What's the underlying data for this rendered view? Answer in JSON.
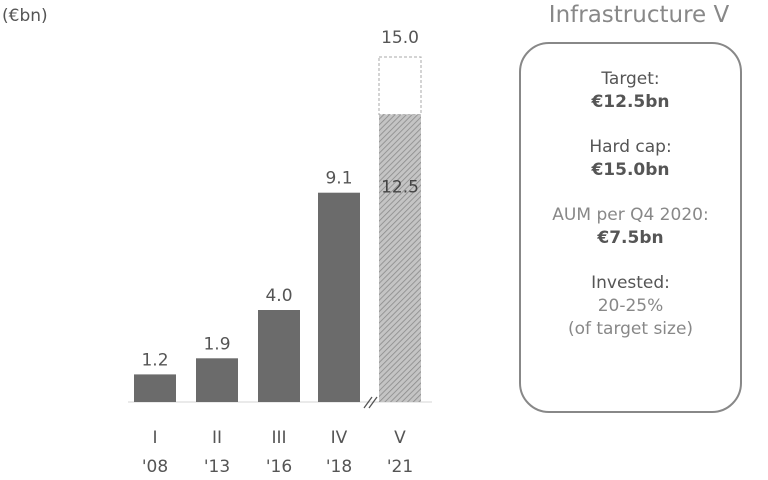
{
  "chart_data": {
    "type": "bar",
    "unit_label": "(€bn)",
    "categories": [
      "I",
      "II",
      "III",
      "IV",
      "V"
    ],
    "years": [
      "'08",
      "'13",
      "'16",
      "'18",
      "'21"
    ],
    "values": [
      1.2,
      1.9,
      4.0,
      9.1,
      12.5
    ],
    "value_labels": [
      "1.2",
      "1.9",
      "4.0",
      "9.1",
      "12.5"
    ],
    "hard_cap": {
      "category": "V",
      "value": 15.0,
      "label": "15.0"
    },
    "axis_break_before": "V",
    "ylim": [
      0,
      15.5
    ],
    "grid": false,
    "colors": {
      "bar": "#6b6b6b",
      "hatched": "#b5b5b5",
      "dashed": "#aaaaaa"
    }
  },
  "panel": {
    "title": "Infrastructure V",
    "target_label": "Target:",
    "target_value": "€12.5bn",
    "hardcap_label": "Hard cap:",
    "hardcap_value": "€15.0bn",
    "aum_label": "AUM per Q4 2020:",
    "aum_value": "€7.5bn",
    "invested_label": "Invested:",
    "invested_value": "20-25%",
    "invested_note": "(of target size)"
  }
}
